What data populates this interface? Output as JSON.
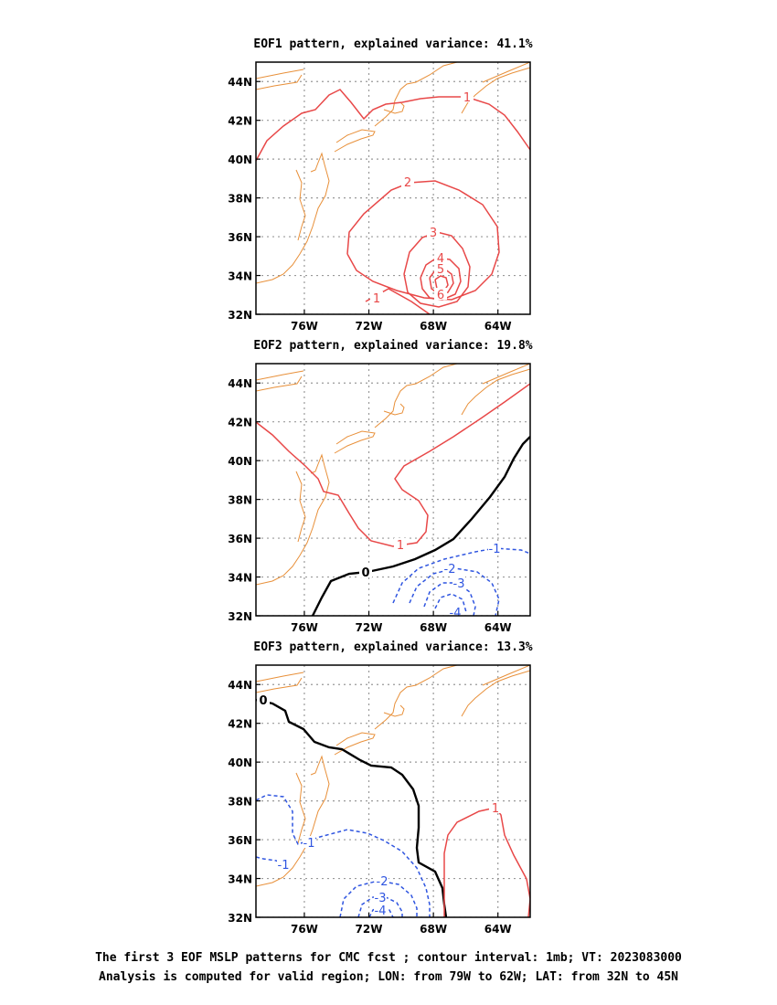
{
  "colors": {
    "coast": "#e8903a",
    "positive": "#e84848",
    "negative": "#2f55e0",
    "zero": "#000000",
    "grid": "#999999",
    "frame": "#000000"
  },
  "map_extent": {
    "lon": [
      -79,
      -62
    ],
    "lat": [
      32,
      45
    ]
  },
  "x_ticks": [
    {
      "lon": -76,
      "label": "76W"
    },
    {
      "lon": -72,
      "label": "72W"
    },
    {
      "lon": -68,
      "label": "68W"
    },
    {
      "lon": -64,
      "label": "64W"
    }
  ],
  "y_ticks": [
    {
      "lat": 44,
      "label": "44N"
    },
    {
      "lat": 42,
      "label": "42N"
    },
    {
      "lat": 40,
      "label": "40N"
    },
    {
      "lat": 38,
      "label": "38N"
    },
    {
      "lat": 36,
      "label": "36N"
    },
    {
      "lat": 34,
      "label": "34N"
    },
    {
      "lat": 32,
      "label": "32N"
    }
  ],
  "chart_data": [
    {
      "type": "contour map",
      "title": "EOF1 pattern, explained variance: 41.1%",
      "explained_variance_percent": 41.1,
      "contour_labels": [
        "1",
        "1",
        "2",
        "3",
        "4",
        "5",
        "6"
      ]
    },
    {
      "type": "contour map",
      "title": "EOF2 pattern, explained variance: 19.8%",
      "explained_variance_percent": 19.8,
      "contour_labels": [
        "1",
        "0",
        "-1",
        "-2",
        "-3",
        "-4"
      ]
    },
    {
      "type": "contour map",
      "title": "EOF3 pattern, explained variance: 13.3%",
      "explained_variance_percent": 13.3,
      "contour_labels": [
        "0",
        "1",
        "-1",
        "-1",
        "-2",
        "-3",
        "-4"
      ]
    }
  ],
  "caption": {
    "line1": "The first 3 EOF MSLP patterns for CMC fcst ; contour interval: 1mb; VT: 2023083000",
    "line2": "Analysis is computed for valid region; LON: from 79W to 62W; LAT: from 32N to 45N"
  }
}
